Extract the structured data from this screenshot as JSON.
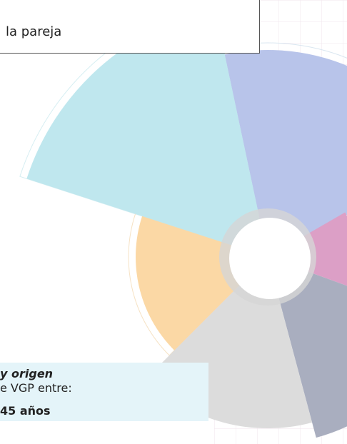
{
  "header": {
    "title": "la pareja"
  },
  "note": {
    "lines": [
      "y origen",
      "e VGP entre:",
      "45 años"
    ]
  }
}
